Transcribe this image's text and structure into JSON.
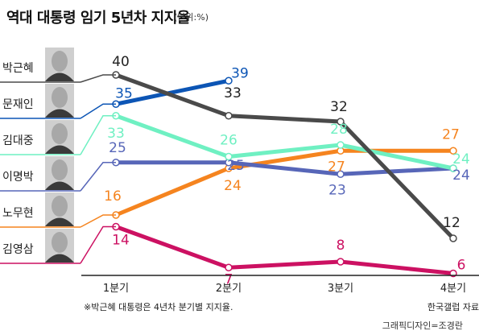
{
  "title": "역대 대통령 임기 5년차 지지율",
  "unit": "(단위:%)",
  "credit": "그래픽디자인=조경란",
  "note": "※박근혜 대통령은 4년차 분기별 지지율.",
  "source": "한국갤럽 자료",
  "chart_data": {
    "type": "line",
    "categories": [
      "1분기",
      "2분기",
      "3분기",
      "4분기"
    ],
    "title": "역대 대통령 임기 5년차 지지율",
    "ylabel": "(단위:%)",
    "series": [
      {
        "name": "박근혜",
        "color": "#4a4a4a",
        "values": [
          40,
          33,
          32,
          12
        ]
      },
      {
        "name": "문재인",
        "color": "#0c55b5",
        "values": [
          35,
          39,
          null,
          null
        ]
      },
      {
        "name": "김대중",
        "color": "#6ff0c2",
        "values": [
          33,
          26,
          28,
          24
        ]
      },
      {
        "name": "이명박",
        "color": "#5766b8",
        "values": [
          25,
          25,
          23,
          24
        ]
      },
      {
        "name": "노무현",
        "color": "#f5841f",
        "values": [
          16,
          24,
          27,
          27
        ]
      },
      {
        "name": "김영삼",
        "color": "#cc1162",
        "values": [
          14,
          7,
          8,
          6
        ]
      }
    ]
  }
}
